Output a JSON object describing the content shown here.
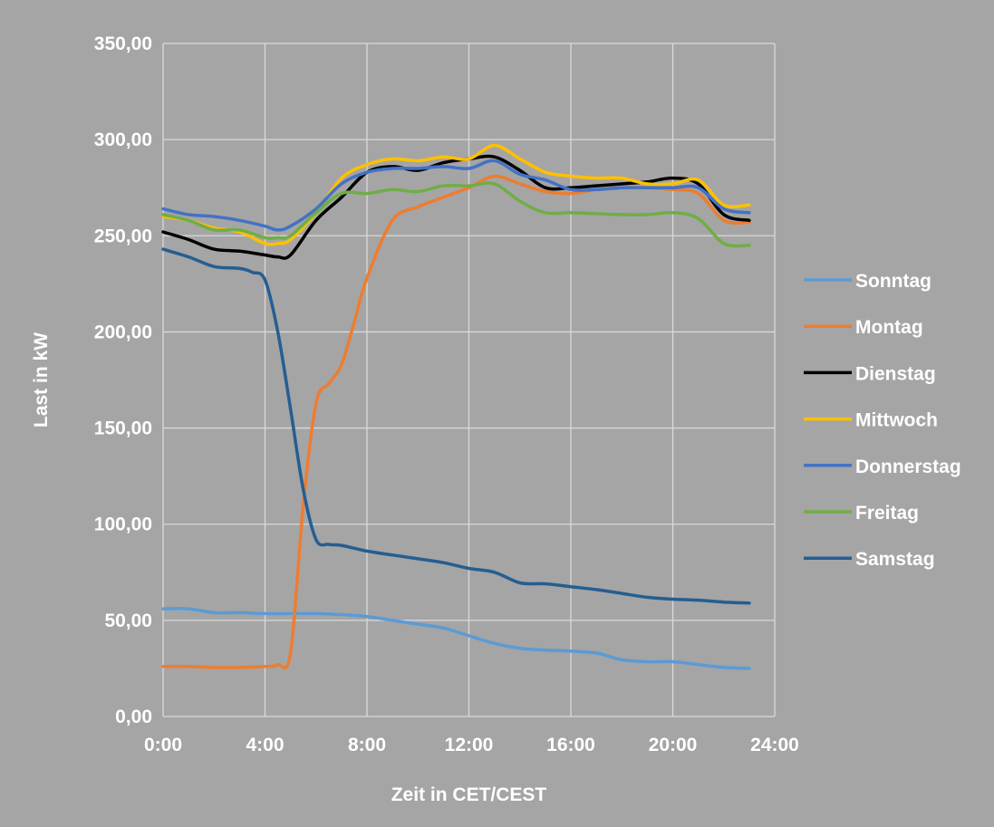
{
  "chart_data": {
    "type": "line",
    "xlabel": "Zeit in CET/CEST",
    "ylabel": "Last in kW",
    "xlim": [
      0,
      24
    ],
    "ylim": [
      0,
      350
    ],
    "grid": true,
    "legend_position": "right",
    "x_ticks": [
      {
        "value": 0,
        "label": "0:00"
      },
      {
        "value": 4,
        "label": "4:00"
      },
      {
        "value": 8,
        "label": "8:00"
      },
      {
        "value": 12,
        "label": "12:00"
      },
      {
        "value": 16,
        "label": "16:00"
      },
      {
        "value": 20,
        "label": "20:00"
      },
      {
        "value": 24,
        "label": "24:00"
      }
    ],
    "y_ticks": [
      {
        "value": 0,
        "label": "0,00"
      },
      {
        "value": 50,
        "label": "50,00"
      },
      {
        "value": 100,
        "label": "100,00"
      },
      {
        "value": 150,
        "label": "150,00"
      },
      {
        "value": 200,
        "label": "200,00"
      },
      {
        "value": 250,
        "label": "250,00"
      },
      {
        "value": 300,
        "label": "300,00"
      },
      {
        "value": 350,
        "label": "350,00"
      }
    ],
    "series": [
      {
        "name": "Sonntag",
        "color": "#5b9bd5",
        "points": [
          [
            0,
            56
          ],
          [
            1,
            56
          ],
          [
            2,
            54
          ],
          [
            3,
            54
          ],
          [
            4,
            53.5
          ],
          [
            5,
            53.5
          ],
          [
            6,
            53.5
          ],
          [
            7,
            53
          ],
          [
            8,
            52
          ],
          [
            9,
            50
          ],
          [
            10,
            48
          ],
          [
            11,
            46
          ],
          [
            12,
            42
          ],
          [
            13,
            38
          ],
          [
            14,
            35.5
          ],
          [
            15,
            34.5
          ],
          [
            16,
            34
          ],
          [
            17,
            33
          ],
          [
            18,
            29.5
          ],
          [
            19,
            28.5
          ],
          [
            20,
            28.5
          ],
          [
            21,
            27
          ],
          [
            22,
            25.5
          ],
          [
            23,
            25
          ]
        ]
      },
      {
        "name": "Montag",
        "color": "#ed7d31",
        "points": [
          [
            0,
            26
          ],
          [
            1,
            26
          ],
          [
            2,
            25.5
          ],
          [
            3,
            25.5
          ],
          [
            4,
            26
          ],
          [
            4.5,
            27
          ],
          [
            5,
            33
          ],
          [
            5.5,
            110
          ],
          [
            6,
            163
          ],
          [
            6.5,
            173
          ],
          [
            7,
            183
          ],
          [
            7.5,
            205
          ],
          [
            8,
            228
          ],
          [
            9,
            258
          ],
          [
            10,
            265
          ],
          [
            11,
            270
          ],
          [
            12,
            275
          ],
          [
            13,
            281
          ],
          [
            14,
            277
          ],
          [
            15,
            273
          ],
          [
            16,
            272
          ],
          [
            17,
            274
          ],
          [
            18,
            275
          ],
          [
            19,
            275
          ],
          [
            20,
            274
          ],
          [
            21,
            272
          ],
          [
            22,
            258
          ],
          [
            23,
            257
          ]
        ]
      },
      {
        "name": "Dienstag",
        "color": "#000000",
        "points": [
          [
            0,
            252
          ],
          [
            1,
            248
          ],
          [
            2,
            243
          ],
          [
            3,
            242
          ],
          [
            4,
            240
          ],
          [
            4.5,
            239
          ],
          [
            5,
            240
          ],
          [
            6,
            258
          ],
          [
            7,
            270
          ],
          [
            8,
            283
          ],
          [
            9,
            286
          ],
          [
            10,
            284
          ],
          [
            11,
            288
          ],
          [
            12,
            290
          ],
          [
            13,
            291
          ],
          [
            14,
            284
          ],
          [
            15,
            275
          ],
          [
            16,
            275
          ],
          [
            17,
            276
          ],
          [
            18,
            277
          ],
          [
            19,
            278
          ],
          [
            20,
            280
          ],
          [
            21,
            277
          ],
          [
            22,
            261
          ],
          [
            23,
            258
          ]
        ]
      },
      {
        "name": "Mittwoch",
        "color": "#ffc000",
        "points": [
          [
            0,
            260
          ],
          [
            1,
            258
          ],
          [
            2,
            254
          ],
          [
            3,
            252
          ],
          [
            4,
            246
          ],
          [
            4.5,
            246
          ],
          [
            5,
            248
          ],
          [
            6,
            262
          ],
          [
            7,
            280
          ],
          [
            8,
            287
          ],
          [
            9,
            290
          ],
          [
            10,
            289
          ],
          [
            11,
            291
          ],
          [
            12,
            290
          ],
          [
            13,
            297
          ],
          [
            14,
            290
          ],
          [
            15,
            283
          ],
          [
            16,
            281
          ],
          [
            17,
            280
          ],
          [
            18,
            280
          ],
          [
            19,
            277
          ],
          [
            20,
            277
          ],
          [
            21,
            279
          ],
          [
            22,
            266
          ],
          [
            23,
            266
          ]
        ]
      },
      {
        "name": "Donnerstag",
        "color": "#4472c4",
        "points": [
          [
            0,
            264
          ],
          [
            1,
            261
          ],
          [
            2,
            260
          ],
          [
            3,
            258
          ],
          [
            4,
            255
          ],
          [
            4.5,
            253
          ],
          [
            5,
            255
          ],
          [
            6,
            264
          ],
          [
            7,
            277
          ],
          [
            8,
            283
          ],
          [
            9,
            285
          ],
          [
            10,
            285
          ],
          [
            11,
            286
          ],
          [
            12,
            285
          ],
          [
            13,
            289
          ],
          [
            14,
            282
          ],
          [
            15,
            279
          ],
          [
            16,
            274
          ],
          [
            17,
            274
          ],
          [
            18,
            275
          ],
          [
            19,
            275
          ],
          [
            20,
            275
          ],
          [
            21,
            275
          ],
          [
            22,
            264
          ],
          [
            23,
            262
          ]
        ]
      },
      {
        "name": "Freitag",
        "color": "#70ad47",
        "points": [
          [
            0,
            261
          ],
          [
            1,
            258
          ],
          [
            2,
            253
          ],
          [
            3,
            253
          ],
          [
            4,
            249
          ],
          [
            4.5,
            249
          ],
          [
            5,
            250
          ],
          [
            6,
            262
          ],
          [
            7,
            272
          ],
          [
            8,
            272
          ],
          [
            9,
            274
          ],
          [
            10,
            273
          ],
          [
            11,
            276
          ],
          [
            12,
            276
          ],
          [
            13,
            277
          ],
          [
            14,
            268
          ],
          [
            15,
            262
          ],
          [
            16,
            262
          ],
          [
            17,
            261.5
          ],
          [
            18,
            261
          ],
          [
            19,
            261
          ],
          [
            20,
            262
          ],
          [
            21,
            259
          ],
          [
            22,
            246
          ],
          [
            23,
            245
          ]
        ]
      },
      {
        "name": "Samstag",
        "color": "#255e91",
        "points": [
          [
            0,
            243
          ],
          [
            1,
            239
          ],
          [
            2,
            234
          ],
          [
            3,
            233
          ],
          [
            3.5,
            231
          ],
          [
            4,
            227
          ],
          [
            4.5,
            200
          ],
          [
            5,
            160
          ],
          [
            5.5,
            118
          ],
          [
            6,
            92
          ],
          [
            6.5,
            89.5
          ],
          [
            7,
            89
          ],
          [
            8,
            86
          ],
          [
            9,
            84
          ],
          [
            10,
            82
          ],
          [
            11,
            80
          ],
          [
            12,
            77
          ],
          [
            13,
            75
          ],
          [
            14,
            69.5
          ],
          [
            15,
            69
          ],
          [
            16,
            67.5
          ],
          [
            17,
            66
          ],
          [
            18,
            64
          ],
          [
            19,
            62
          ],
          [
            20,
            61
          ],
          [
            21,
            60.5
          ],
          [
            22,
            59.5
          ],
          [
            23,
            59
          ]
        ]
      }
    ]
  }
}
